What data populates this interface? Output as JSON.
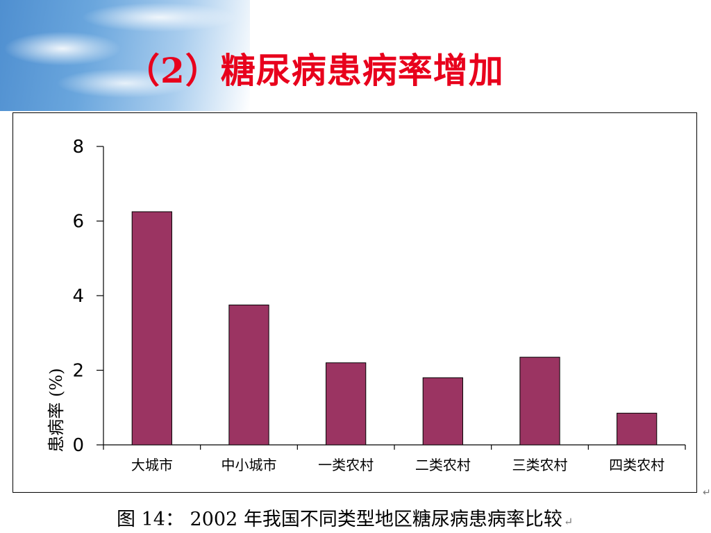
{
  "slide": {
    "title": "（2）糖尿病患病率增加",
    "caption": "图 14： 2002 年我国不同类型地区糖尿病患病率比较",
    "caption_mark": "↵",
    "side_mark": "↵"
  },
  "colors": {
    "title": "#e8001c",
    "bar_fill": "#9b3462",
    "bar_stroke": "#000000"
  },
  "chart_data": {
    "type": "bar",
    "title": "",
    "xlabel": "",
    "ylabel": "患病率 (%)",
    "ylim": [
      0,
      8
    ],
    "yticks": [
      0,
      2,
      4,
      6,
      8
    ],
    "categories": [
      "大城市",
      "中小城市",
      "一类农村",
      "二类农村",
      "三类农村",
      "四类农村"
    ],
    "values": [
      6.25,
      3.75,
      2.2,
      1.8,
      2.35,
      0.85
    ],
    "grid": false,
    "legend": "none"
  }
}
